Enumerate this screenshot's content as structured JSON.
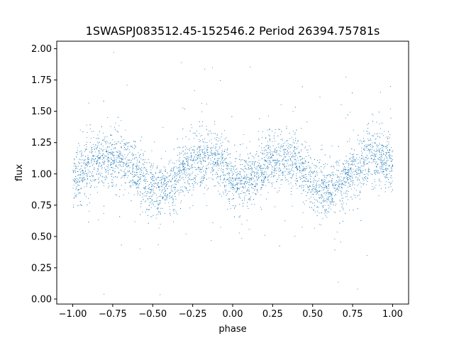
{
  "chart_data": {
    "type": "scatter",
    "title": "1SWASPJ083512.45-152546.2 Period 26394.75781s",
    "xlabel": "phase",
    "ylabel": "flux",
    "xlim": [
      -1.1,
      1.1
    ],
    "ylim": [
      -0.04,
      2.06
    ],
    "x_ticks": [
      -1.0,
      -0.75,
      -0.5,
      -0.25,
      0.0,
      0.25,
      0.5,
      0.75,
      1.0
    ],
    "x_tick_labels": [
      "−1.00",
      "−0.75",
      "−0.50",
      "−0.25",
      "0.00",
      "0.25",
      "0.50",
      "0.75",
      "1.00"
    ],
    "y_ticks": [
      0.0,
      0.25,
      0.5,
      0.75,
      1.0,
      1.25,
      1.5,
      1.75,
      2.0
    ],
    "y_tick_labels": [
      "0.00",
      "0.25",
      "0.50",
      "0.75",
      "1.00",
      "1.25",
      "1.50",
      "1.75",
      "2.00"
    ],
    "grid": false,
    "legend": "none",
    "marker_color": "#1f77b4",
    "marker": "pixel",
    "series": [
      {
        "phase": [
          -1.0,
          -0.95,
          -0.9,
          -0.85,
          -0.8,
          -0.75,
          -0.7,
          -0.65,
          -0.6,
          -0.55,
          -0.5,
          -0.45,
          -0.4,
          -0.35,
          -0.3,
          -0.25,
          -0.2,
          -0.15,
          -0.1,
          -0.05,
          0.0,
          0.05,
          0.1,
          0.15,
          0.2,
          0.25,
          0.3,
          0.35,
          0.4,
          0.45,
          0.5,
          0.55,
          0.6,
          0.65,
          0.7,
          0.75,
          0.8,
          0.85,
          0.9,
          0.95,
          1.0
        ],
        "flux_mean": [
          0.95,
          1.0,
          1.05,
          1.09,
          1.12,
          1.13,
          1.12,
          1.08,
          1.02,
          0.94,
          0.88,
          0.86,
          0.9,
          0.96,
          1.03,
          1.09,
          1.13,
          1.14,
          1.11,
          1.05,
          0.97,
          0.93,
          0.95,
          1.0,
          1.06,
          1.1,
          1.13,
          1.12,
          1.08,
          1.02,
          0.94,
          0.88,
          0.86,
          0.9,
          0.96,
          1.03,
          1.09,
          1.13,
          1.14,
          1.11,
          1.05
        ]
      }
    ]
  }
}
